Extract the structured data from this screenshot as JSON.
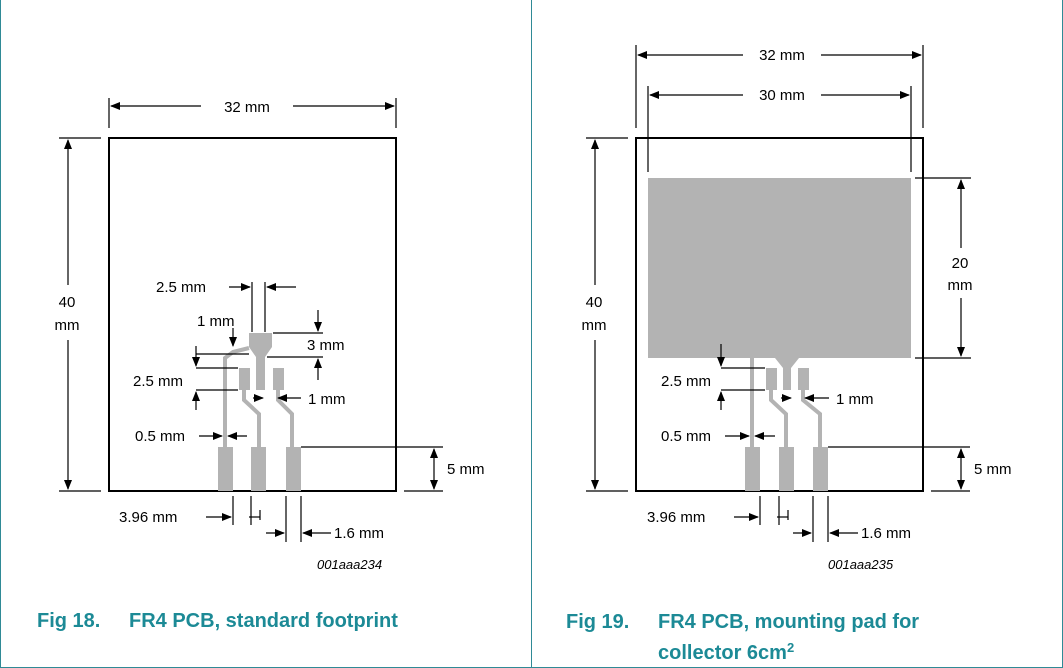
{
  "figures": [
    {
      "id": "fig18",
      "caption_number": "Fig 18.",
      "caption_text": "FR4 PCB, standard footprint",
      "code": "001aaa234",
      "labels": {
        "width": "32 mm",
        "height_value": "40",
        "height_unit": "mm",
        "d2_5_top": "2.5 mm",
        "d1_top": "1 mm",
        "d3": "3 mm",
        "d2_5_left": "2.5 mm",
        "d1_right": "1 mm",
        "d0_5": "0.5 mm",
        "d5": "5 mm",
        "d3_96": "3.96 mm",
        "d1_6": "1.6 mm"
      }
    },
    {
      "id": "fig19",
      "caption_number": "Fig 19.",
      "caption_text_line1": "FR4 PCB, mounting pad for",
      "caption_text_line2": "collector 6cm",
      "caption_superscript": "2",
      "code": "001aaa235",
      "labels": {
        "width": "32 mm",
        "pad_width": "30 mm",
        "height_value": "40",
        "height_unit": "mm",
        "pad_height_value": "20",
        "pad_height_unit": "mm",
        "d2_5_left": "2.5 mm",
        "d1_right": "1 mm",
        "d0_5": "0.5 mm",
        "d5": "5 mm",
        "d3_96": "3.96 mm",
        "d1_6": "1.6 mm"
      }
    }
  ],
  "colors": {
    "accent": "#1c8a96",
    "copper": "#b3b3b3",
    "line": "#000000"
  }
}
